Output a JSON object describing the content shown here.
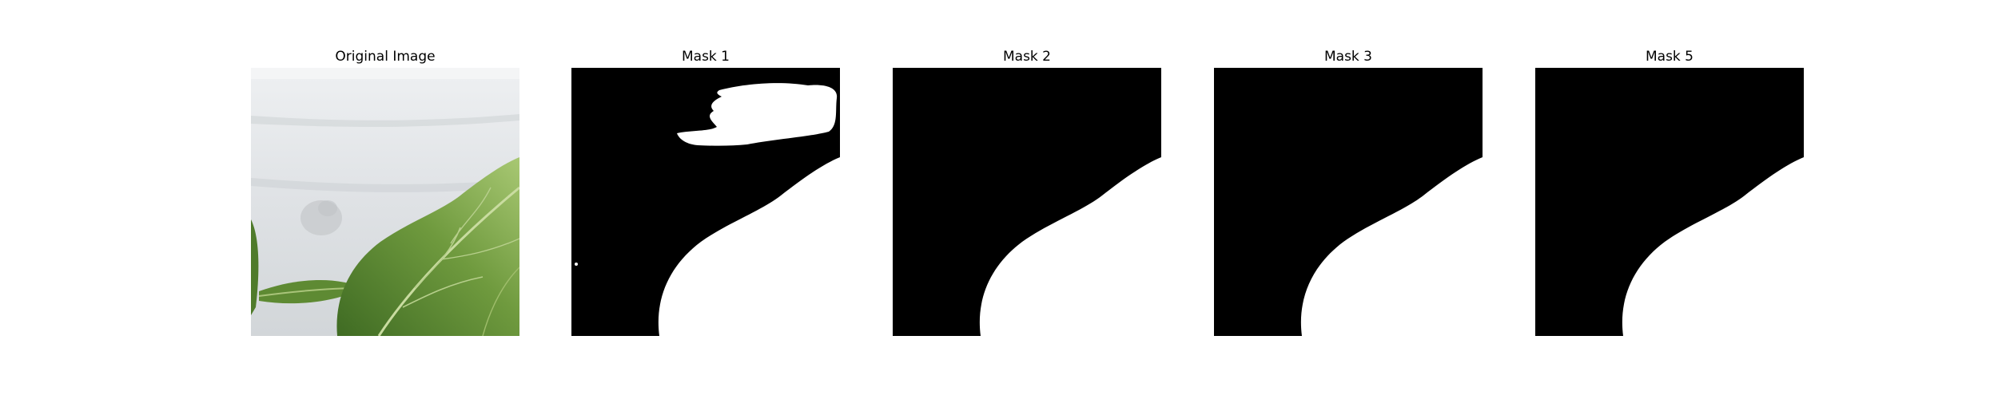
{
  "figure": {
    "panels": [
      {
        "id": "original",
        "title": "Original Image",
        "kind": "photo"
      },
      {
        "id": "mask-1",
        "title": "Mask 1",
        "kind": "mask",
        "has_blob": true
      },
      {
        "id": "mask-2",
        "title": "Mask 2",
        "kind": "mask",
        "has_blob": false
      },
      {
        "id": "mask-3",
        "title": "Mask 3",
        "kind": "mask",
        "has_blob": false
      },
      {
        "id": "mask-5",
        "title": "Mask 5",
        "kind": "mask",
        "has_blob": false
      }
    ]
  },
  "colors": {
    "mask_background": "#000000",
    "mask_foreground": "#ffffff",
    "wall_light": "#e2e5e8",
    "wall_dark": "#c7cbcf",
    "leaf_light": "#9fbf6a",
    "leaf_mid": "#6f9a3e",
    "leaf_dark": "#3f6b23",
    "leaf_vein": "#c9dca0"
  }
}
